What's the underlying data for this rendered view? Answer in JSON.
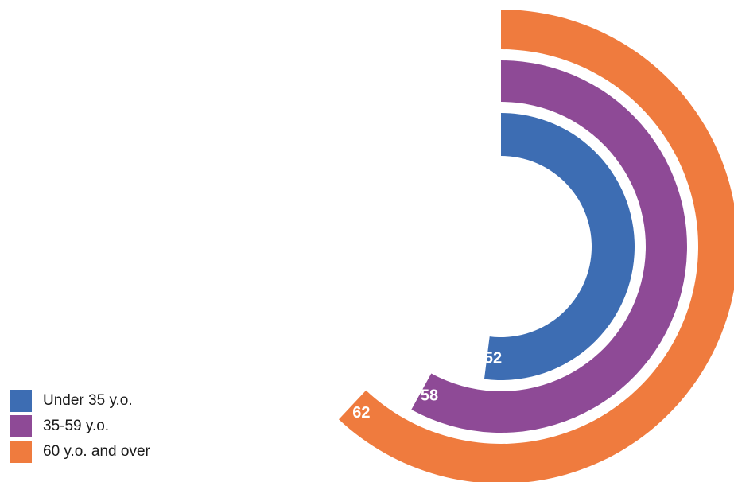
{
  "chart_data": {
    "type": "radial-bar",
    "max": 100,
    "title": "",
    "legend_position": "bottom-left",
    "grid": false,
    "series": [
      {
        "name": "Under 35 y.o.",
        "value": 52,
        "color": "#3d6db3"
      },
      {
        "name": "35-59 y.o.",
        "value": 58,
        "color": "#8e4a96"
      },
      {
        "name": "60 y.o. and over",
        "value": 62,
        "color": "#ef7b3e"
      }
    ]
  }
}
